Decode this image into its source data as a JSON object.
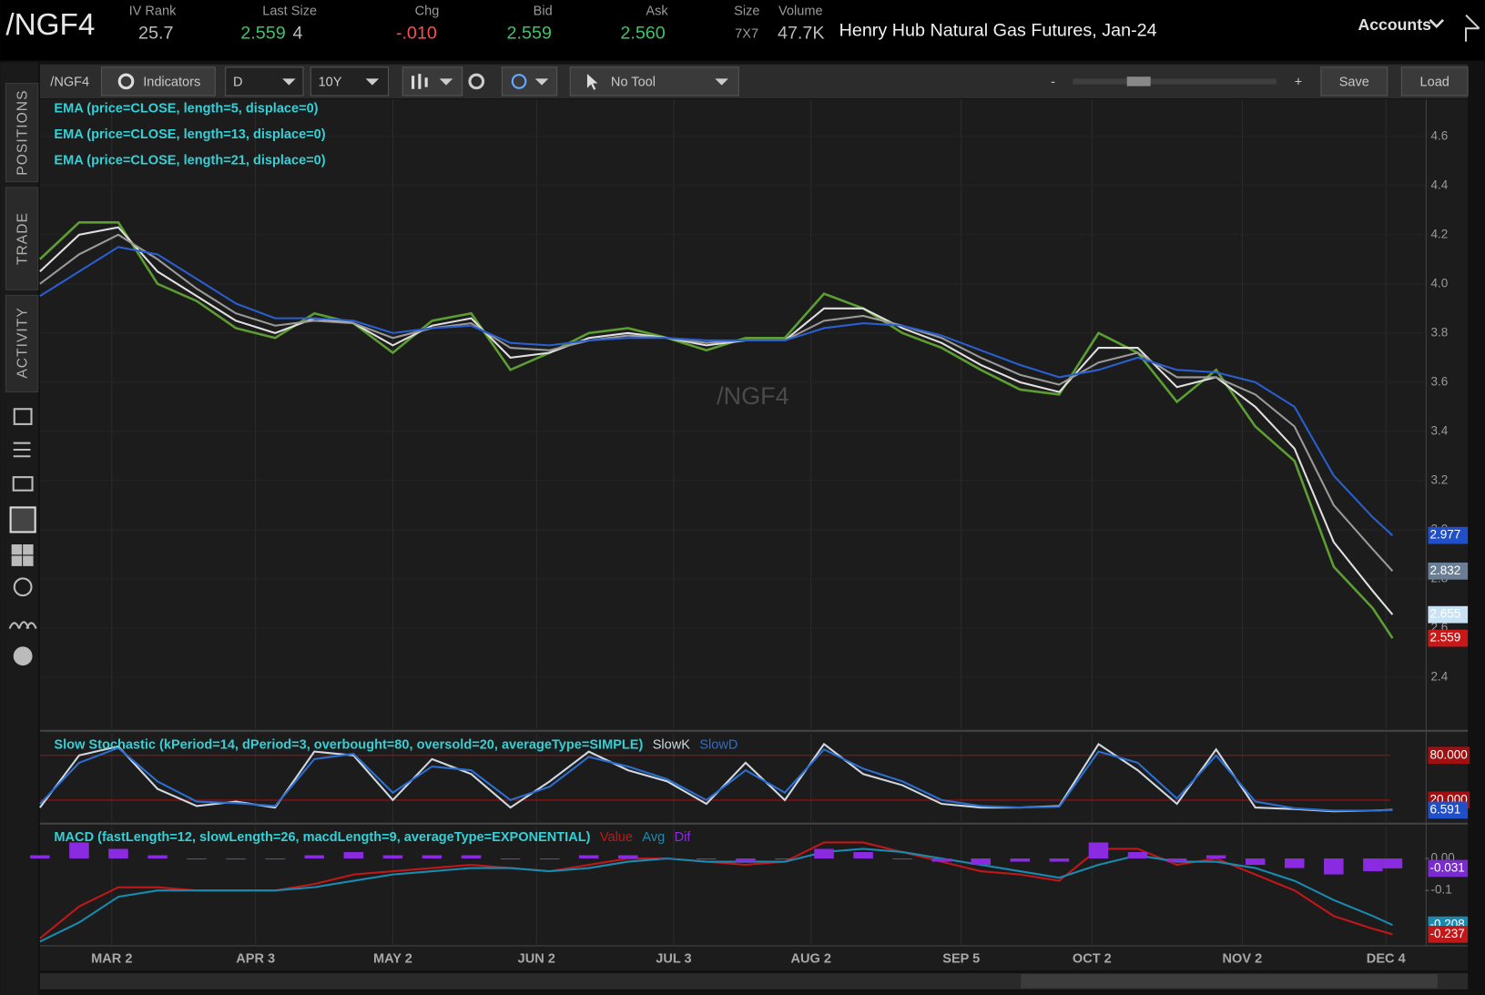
{
  "header": {
    "symbol": "/NGF4",
    "iv_rank": {
      "label": "IV Rank",
      "value": "25.7"
    },
    "last_size": {
      "label": "Last Size",
      "price": "2.559",
      "size": "4"
    },
    "chg": {
      "label": "Chg",
      "value": "-.010"
    },
    "bid": {
      "label": "Bid",
      "value": "2.559"
    },
    "ask": {
      "label": "Ask",
      "value": "2.560"
    },
    "size": {
      "label": "Size",
      "value": "7X7"
    },
    "volume": {
      "label": "Volume",
      "value": "47.7K"
    },
    "description": "Henry Hub Natural Gas Futures, Jan-24",
    "accounts": "Accounts"
  },
  "toolbar": {
    "symbol": "/NGF4",
    "indicators": "Indicators",
    "aggregation": "D",
    "period": "10Y",
    "tool": "No Tool",
    "zoom_minus": "-",
    "zoom_plus": "+",
    "save": "Save",
    "load": "Load"
  },
  "side_tabs": [
    "POSITIONS",
    "TRADE",
    "ACTIVITY"
  ],
  "chart_data": [
    {
      "type": "line",
      "title": "/NGF4",
      "studies": [
        "EMA (price=CLOSE, length=5, displace=0)",
        "EMA (price=CLOSE, length=13, displace=0)",
        "EMA (price=CLOSE, length=21, displace=0)"
      ],
      "x": [
        0,
        6,
        12,
        18,
        24,
        30,
        36,
        42,
        48,
        54,
        60,
        66,
        72,
        78,
        84,
        90,
        96,
        102,
        108,
        114,
        120,
        126,
        132,
        138,
        144,
        150,
        156,
        162,
        168,
        174,
        180,
        186,
        192,
        198,
        204,
        207
      ],
      "xlim": [
        0,
        212
      ],
      "xticks": [
        {
          "value": 11,
          "label": "MAR 2"
        },
        {
          "value": 33,
          "label": "APR 3"
        },
        {
          "value": 54,
          "label": "MAY 2"
        },
        {
          "value": 76,
          "label": "JUN 2"
        },
        {
          "value": 97,
          "label": "JUL 3"
        },
        {
          "value": 118,
          "label": "AUG 2"
        },
        {
          "value": 141,
          "label": "SEP 5"
        },
        {
          "value": 161,
          "label": "OCT 2"
        },
        {
          "value": 184,
          "label": "NOV 2"
        },
        {
          "value": 206,
          "label": "DEC 4"
        }
      ],
      "ylim": [
        2.19,
        4.75
      ],
      "yticks": [
        2.4,
        2.6,
        2.8,
        {
          "value": 3,
          "label": "3.0"
        },
        3.2,
        3.4,
        3.6,
        3.8,
        {
          "value": 4,
          "label": "4.0"
        },
        4.2,
        4.4,
        4.6
      ],
      "grid": true,
      "series": [
        {
          "name": "CLOSE",
          "color": "#5c9e31",
          "values": [
            4.1,
            4.25,
            4.25,
            4.0,
            3.93,
            3.82,
            3.78,
            3.88,
            3.84,
            3.72,
            3.85,
            3.88,
            3.65,
            3.72,
            3.8,
            3.82,
            3.78,
            3.73,
            3.78,
            3.78,
            3.96,
            3.9,
            3.8,
            3.74,
            3.65,
            3.57,
            3.55,
            3.8,
            3.72,
            3.52,
            3.65,
            3.42,
            3.28,
            2.85,
            2.68,
            2.559
          ]
        },
        {
          "name": "EMA5",
          "color": "#e0e0e0",
          "values": [
            4.05,
            4.2,
            4.23,
            4.05,
            3.95,
            3.85,
            3.8,
            3.86,
            3.84,
            3.75,
            3.83,
            3.86,
            3.7,
            3.72,
            3.78,
            3.8,
            3.78,
            3.75,
            3.77,
            3.77,
            3.9,
            3.9,
            3.82,
            3.76,
            3.67,
            3.6,
            3.56,
            3.74,
            3.74,
            3.58,
            3.62,
            3.5,
            3.33,
            2.95,
            2.75,
            2.655
          ]
        },
        {
          "name": "EMA13",
          "color": "#9a9a9a",
          "values": [
            4.0,
            4.12,
            4.2,
            4.1,
            3.98,
            3.88,
            3.83,
            3.85,
            3.84,
            3.78,
            3.82,
            3.84,
            3.74,
            3.73,
            3.77,
            3.79,
            3.78,
            3.76,
            3.77,
            3.77,
            3.85,
            3.87,
            3.83,
            3.78,
            3.7,
            3.63,
            3.59,
            3.68,
            3.72,
            3.62,
            3.62,
            3.55,
            3.42,
            3.1,
            2.92,
            2.832
          ]
        },
        {
          "name": "EMA21",
          "color": "#2a5fd0",
          "values": [
            3.95,
            4.05,
            4.15,
            4.12,
            4.02,
            3.92,
            3.86,
            3.86,
            3.85,
            3.8,
            3.82,
            3.83,
            3.76,
            3.75,
            3.77,
            3.78,
            3.78,
            3.77,
            3.77,
            3.77,
            3.82,
            3.84,
            3.83,
            3.79,
            3.73,
            3.67,
            3.62,
            3.65,
            3.7,
            3.65,
            3.64,
            3.6,
            3.5,
            3.22,
            3.05,
            2.977
          ]
        }
      ],
      "last_labels": [
        {
          "value": 2.977,
          "color": "#1f4fc9"
        },
        {
          "value": 2.832,
          "color": "#6a7f95"
        },
        {
          "value": 2.655,
          "color": "#c9e3f5"
        },
        {
          "value": 2.559,
          "color": "#c81818"
        }
      ]
    },
    {
      "type": "line",
      "title": "Slow Stochastic (kPeriod=14, dPeriod=3, overbought=80, oversold=20, averageType=SIMPLE)",
      "x": [
        0,
        6,
        12,
        18,
        24,
        30,
        36,
        42,
        48,
        54,
        60,
        66,
        72,
        78,
        84,
        90,
        96,
        102,
        108,
        114,
        120,
        126,
        132,
        138,
        144,
        150,
        156,
        162,
        168,
        174,
        180,
        186,
        192,
        198,
        204,
        207
      ],
      "xlim": [
        0,
        212
      ],
      "ylim": [
        -9,
        109
      ],
      "series": [
        {
          "name": "SlowK",
          "color": "#cfd8e0",
          "values": [
            10,
            80,
            92,
            35,
            12,
            18,
            10,
            85,
            80,
            20,
            75,
            55,
            10,
            45,
            85,
            60,
            45,
            15,
            70,
            20,
            95,
            55,
            40,
            15,
            10,
            10,
            12,
            95,
            60,
            15,
            88,
            10,
            8,
            5,
            6,
            7
          ]
        },
        {
          "name": "SlowD",
          "color": "#2a6fd0",
          "values": [
            15,
            70,
            90,
            45,
            18,
            16,
            12,
            75,
            82,
            30,
            65,
            60,
            20,
            38,
            78,
            65,
            48,
            20,
            60,
            30,
            88,
            62,
            45,
            20,
            12,
            10,
            11,
            85,
            70,
            22,
            80,
            18,
            9,
            6,
            6,
            6.591
          ]
        }
      ],
      "levels": [
        {
          "value": 80,
          "label": "80.000"
        },
        {
          "value": 20,
          "label": "20.000"
        }
      ],
      "level_color": "#a01010",
      "last_labels": [
        {
          "value": 6.591,
          "color": "#1f4fc9"
        }
      ]
    },
    {
      "type": "line",
      "title": "MACD (fastLength=12, slowLength=26, macdLength=9, averageType=EXPONENTIAL)",
      "x": [
        0,
        6,
        12,
        18,
        24,
        30,
        36,
        42,
        48,
        54,
        60,
        66,
        72,
        78,
        84,
        90,
        96,
        102,
        108,
        114,
        120,
        126,
        132,
        138,
        144,
        150,
        156,
        162,
        168,
        174,
        180,
        186,
        192,
        198,
        204,
        207
      ],
      "xlim": [
        0,
        212
      ],
      "ylim": [
        -0.27,
        0.1
      ],
      "yticks": [
        {
          "value": 0,
          "label": "0.00"
        },
        -0.1
      ],
      "series": [
        {
          "name": "Value",
          "color": "#c01818",
          "values": [
            -0.25,
            -0.15,
            -0.09,
            -0.09,
            -0.1,
            -0.1,
            -0.1,
            -0.08,
            -0.05,
            -0.04,
            -0.03,
            -0.02,
            -0.03,
            -0.04,
            -0.02,
            0.0,
            0.0,
            -0.01,
            -0.02,
            -0.01,
            0.05,
            0.05,
            0.02,
            -0.01,
            -0.04,
            -0.05,
            -0.07,
            0.03,
            0.03,
            -0.02,
            0.0,
            -0.05,
            -0.1,
            -0.18,
            -0.22,
            -0.237
          ]
        },
        {
          "name": "Avg",
          "color": "#1a8ab0",
          "values": [
            -0.26,
            -0.2,
            -0.12,
            -0.1,
            -0.1,
            -0.1,
            -0.1,
            -0.09,
            -0.07,
            -0.05,
            -0.04,
            -0.03,
            -0.03,
            -0.04,
            -0.03,
            -0.01,
            0.0,
            -0.01,
            -0.01,
            -0.01,
            0.02,
            0.03,
            0.02,
            0.0,
            -0.02,
            -0.04,
            -0.06,
            -0.02,
            0.01,
            -0.01,
            -0.01,
            -0.03,
            -0.07,
            -0.13,
            -0.18,
            -0.208
          ]
        },
        {
          "name": "Dif",
          "color": "#8a2be2",
          "bars": true,
          "values": [
            0.01,
            0.05,
            0.03,
            0.01,
            0,
            0,
            0,
            0.01,
            0.02,
            0.01,
            0.01,
            0.01,
            0,
            0,
            0.01,
            0.01,
            0,
            0,
            -0.01,
            0,
            0.03,
            0.02,
            0,
            -0.01,
            -0.02,
            -0.01,
            -0.01,
            0.05,
            0.02,
            -0.01,
            0.01,
            -0.02,
            -0.03,
            -0.05,
            -0.04,
            -0.031
          ]
        }
      ],
      "last_labels": [
        {
          "value": -0.031,
          "color": "#7a2bd0"
        },
        {
          "value": -0.208,
          "color": "#1a8ab0"
        },
        {
          "value": -0.237,
          "color": "#c01818"
        }
      ]
    }
  ]
}
